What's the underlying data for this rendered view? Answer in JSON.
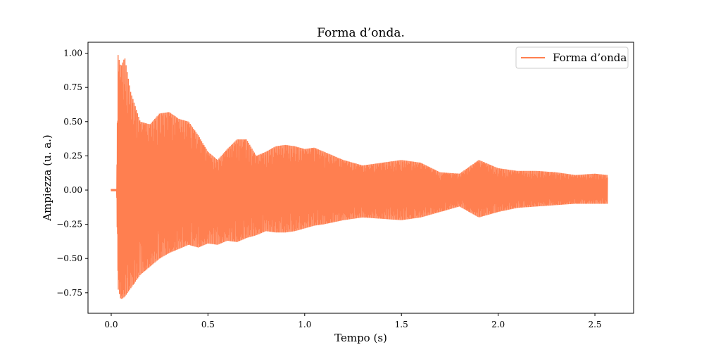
{
  "chart_data": {
    "type": "line",
    "title": "Forma d’onda.",
    "xlabel": "Tempo (s)",
    "ylabel": "Ampiezza (u. a.)",
    "xlim": [
      -0.12,
      2.7
    ],
    "ylim": [
      -0.9,
      1.08
    ],
    "xticks": [
      0.0,
      0.5,
      1.0,
      1.5,
      2.0,
      2.5
    ],
    "xtick_labels": [
      "0.0",
      "0.5",
      "1.0",
      "1.5",
      "2.0",
      "2.5"
    ],
    "yticks": [
      -0.75,
      -0.5,
      -0.25,
      0.0,
      0.25,
      0.5,
      0.75,
      1.0
    ],
    "ytick_labels": [
      "−0.75",
      "−0.50",
      "−0.25",
      "0.00",
      "0.25",
      "0.50",
      "0.75",
      "1.00"
    ],
    "grid": false,
    "legend_position": "top-right",
    "series": [
      {
        "name": "Forma d’onda",
        "color": "#ff7f50",
        "x_range": [
          0.0,
          2.565
        ],
        "onset": 0.03,
        "envelope": {
          "x": [
            0.0,
            0.028,
            0.035,
            0.05,
            0.07,
            0.1,
            0.15,
            0.2,
            0.25,
            0.3,
            0.35,
            0.4,
            0.45,
            0.5,
            0.55,
            0.6,
            0.65,
            0.7,
            0.75,
            0.8,
            0.85,
            0.9,
            0.95,
            1.0,
            1.05,
            1.1,
            1.2,
            1.3,
            1.4,
            1.5,
            1.6,
            1.7,
            1.8,
            1.9,
            2.0,
            2.1,
            2.2,
            2.3,
            2.4,
            2.5,
            2.565
          ],
          "upper": [
            0.01,
            0.01,
            0.99,
            0.9,
            0.97,
            0.72,
            0.5,
            0.48,
            0.56,
            0.57,
            0.52,
            0.5,
            0.4,
            0.28,
            0.22,
            0.3,
            0.37,
            0.37,
            0.25,
            0.28,
            0.32,
            0.33,
            0.32,
            0.3,
            0.31,
            0.28,
            0.22,
            0.18,
            0.2,
            0.22,
            0.2,
            0.13,
            0.12,
            0.22,
            0.16,
            0.14,
            0.14,
            0.13,
            0.11,
            0.12,
            0.11
          ],
          "lower": [
            -0.01,
            -0.01,
            -0.72,
            -0.8,
            -0.78,
            -0.72,
            -0.62,
            -0.56,
            -0.5,
            -0.46,
            -0.43,
            -0.4,
            -0.42,
            -0.39,
            -0.4,
            -0.37,
            -0.38,
            -0.35,
            -0.33,
            -0.3,
            -0.31,
            -0.31,
            -0.3,
            -0.28,
            -0.26,
            -0.25,
            -0.22,
            -0.2,
            -0.21,
            -0.22,
            -0.2,
            -0.16,
            -0.12,
            -0.2,
            -0.16,
            -0.13,
            -0.12,
            -0.11,
            -0.1,
            -0.1,
            -0.1
          ]
        }
      }
    ]
  }
}
